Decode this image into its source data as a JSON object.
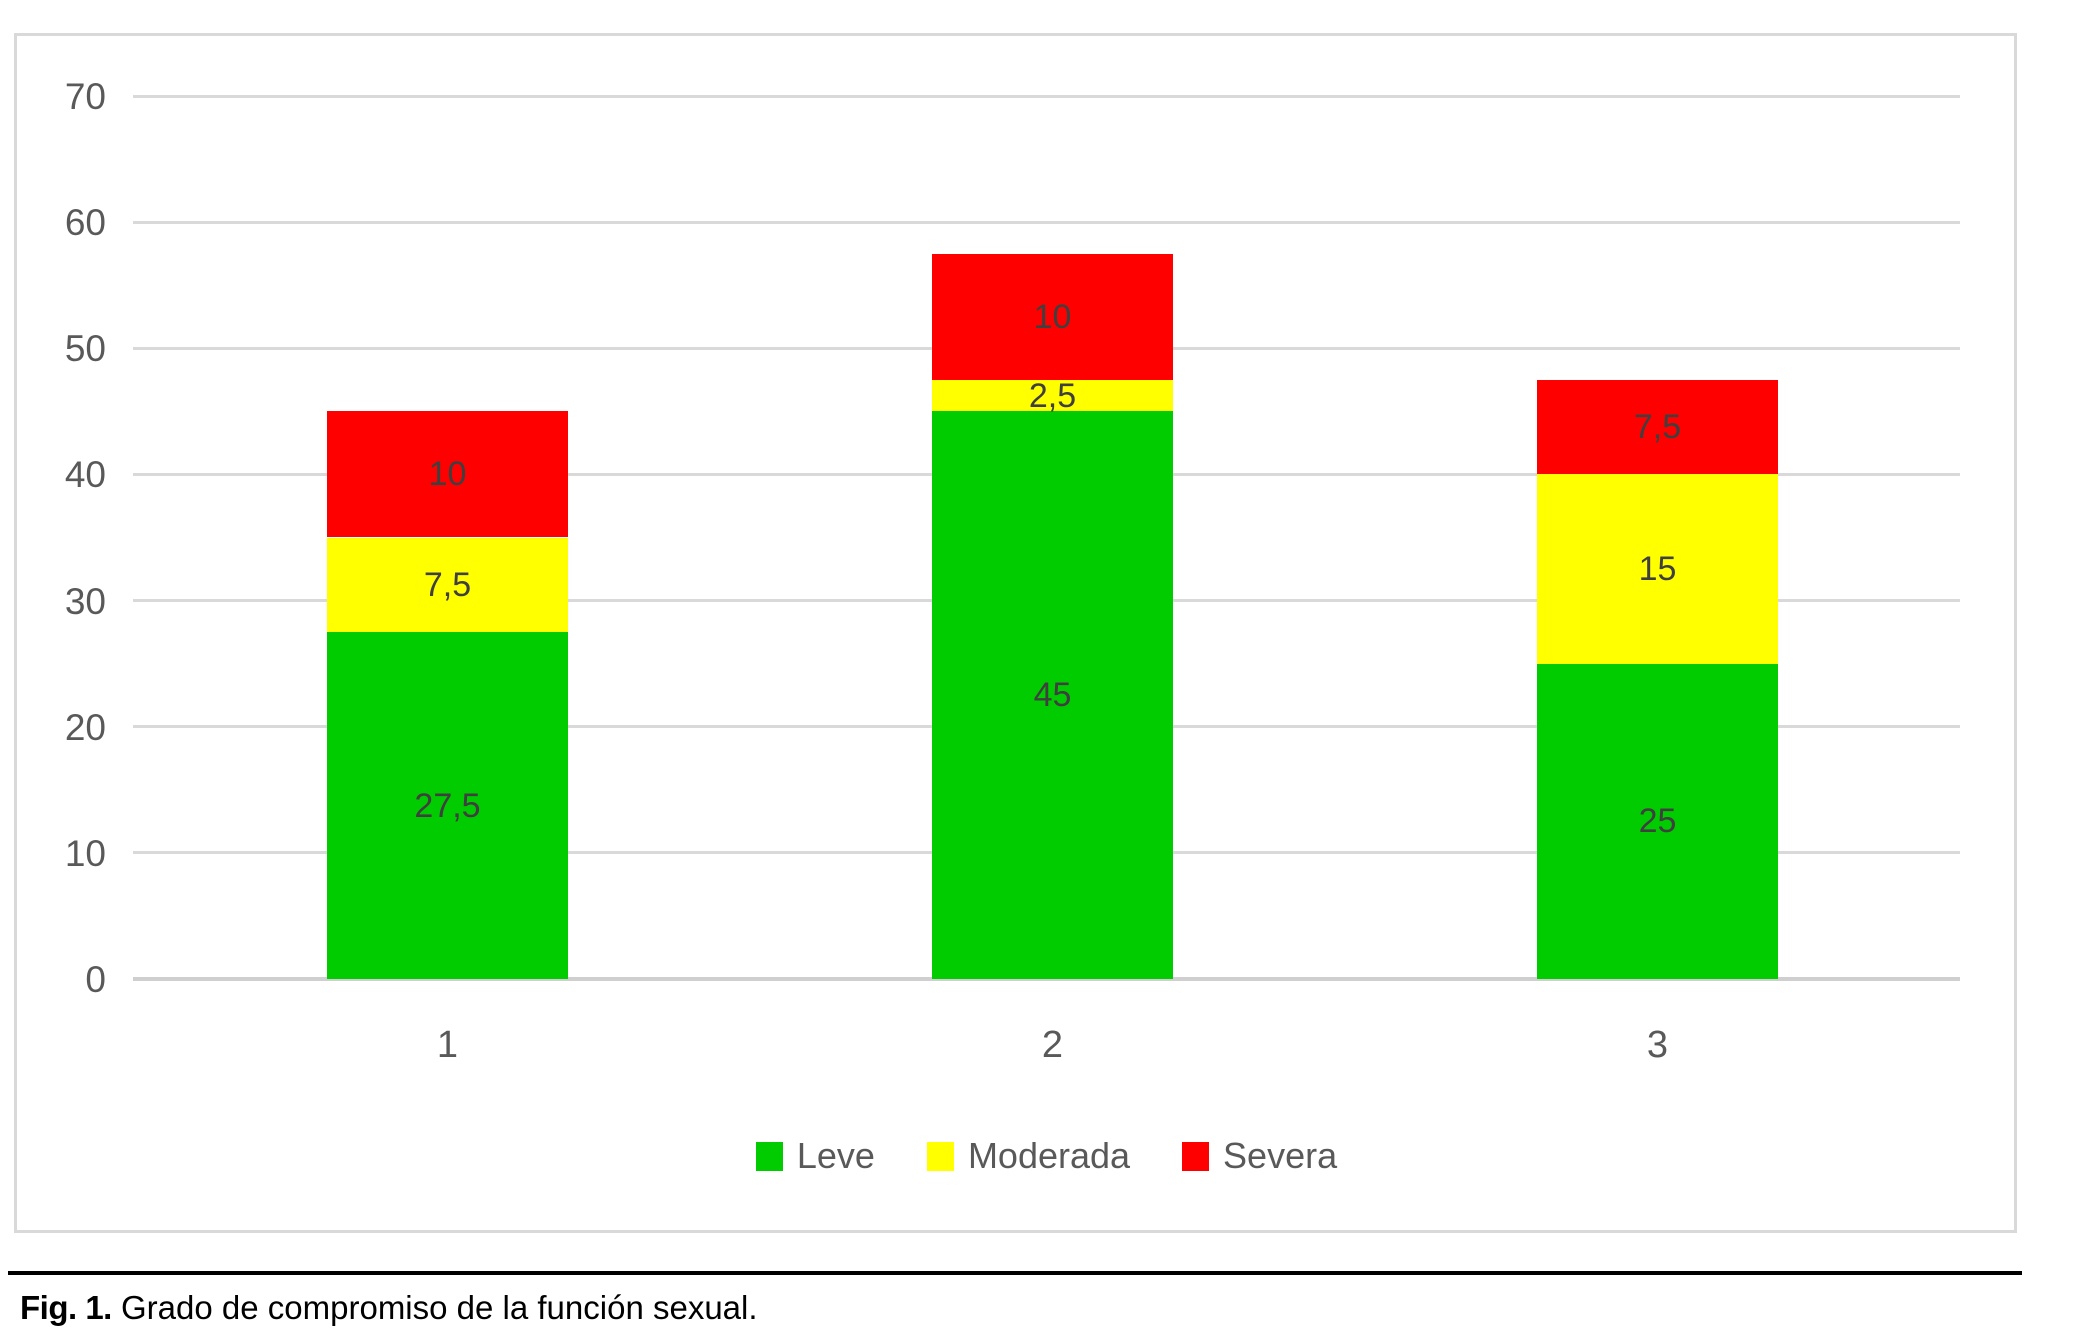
{
  "figure": {
    "caption_label": "Fig. 1.",
    "caption_text": "Grado de compromiso de la función sexual."
  },
  "chart_data": {
    "type": "bar",
    "stacked": true,
    "title": "",
    "xlabel": "",
    "ylabel": "",
    "categories": [
      "1",
      "2",
      "3"
    ],
    "series": [
      {
        "name": "Leve",
        "color": "#00cc00",
        "values": [
          27.5,
          45,
          25
        ],
        "labels": [
          "27,5",
          "45",
          "25"
        ]
      },
      {
        "name": "Moderada",
        "color": "#ffff00",
        "values": [
          7.5,
          2.5,
          15
        ],
        "labels": [
          "7,5",
          "2,5",
          "15"
        ]
      },
      {
        "name": "Severa",
        "color": "#ff0000",
        "values": [
          10,
          10,
          7.5
        ],
        "labels": [
          "10",
          "10",
          "7,5"
        ]
      }
    ],
    "totals": [
      45,
      57.5,
      47.5
    ],
    "ylim": [
      0,
      70
    ],
    "yticks": [
      0,
      10,
      20,
      30,
      40,
      50,
      60,
      70
    ],
    "grid": true,
    "legend_position": "bottom"
  },
  "colors": {
    "background": "#ffffff",
    "gridline": "#d9d9d9",
    "frame_border": "#d9d9d9",
    "axis_text": "#595959",
    "segment_label_text": "#3f3f3f",
    "caption_rule": "#000000",
    "caption_text": "#000000"
  }
}
